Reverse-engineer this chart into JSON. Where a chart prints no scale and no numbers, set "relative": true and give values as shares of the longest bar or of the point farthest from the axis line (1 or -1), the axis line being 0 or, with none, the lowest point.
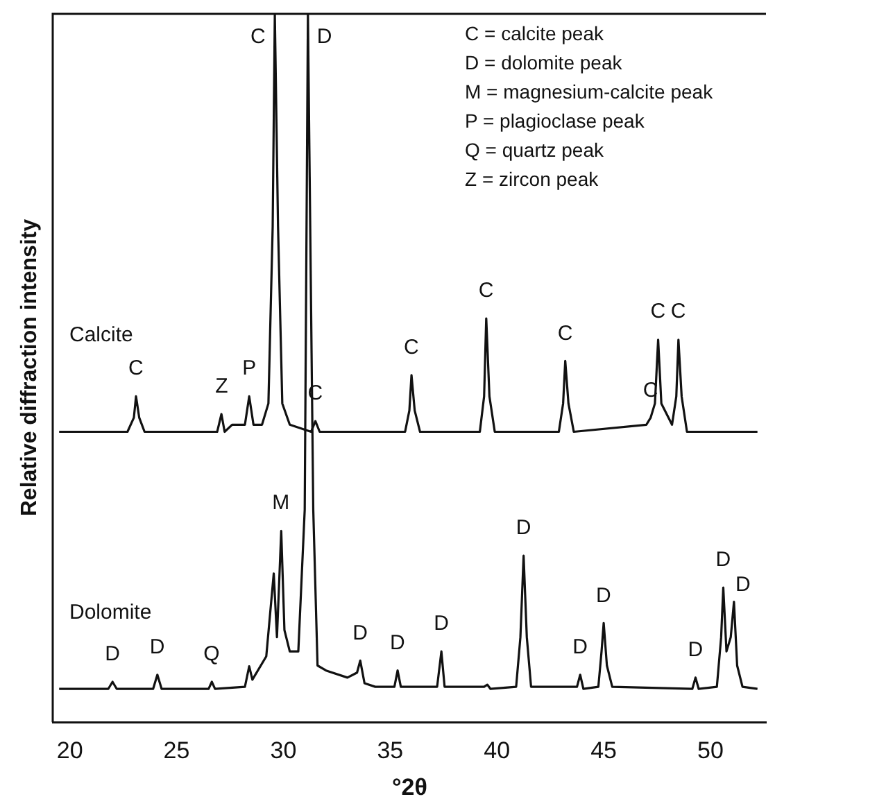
{
  "chart_data": {
    "type": "line",
    "relative": true,
    "xlabel": "°2θ",
    "ylabel": "Relative diffraction intensity",
    "xlim": [
      19.2,
      52.6
    ],
    "xticks": [
      20,
      25,
      30,
      35,
      40,
      45,
      50
    ],
    "tick_labels": "x",
    "grid": false,
    "marker": "none",
    "line_style": "solid",
    "series": [
      {
        "name": "Calcite",
        "color": "#111111",
        "x": [
          19.5,
          22.7,
          23.0,
          23.1,
          23.25,
          23.5,
          26.9,
          27.1,
          27.25,
          27.6,
          28.2,
          28.4,
          28.6,
          29.0,
          29.3,
          29.5,
          29.6,
          29.75,
          29.95,
          30.3,
          31.3,
          31.5,
          31.7,
          35.7,
          35.9,
          36.0,
          36.15,
          36.4,
          39.2,
          39.4,
          39.5,
          39.65,
          39.9,
          42.9,
          43.1,
          43.2,
          43.35,
          43.6,
          47.0,
          47.2,
          47.4,
          47.55,
          47.7,
          48.2,
          48.4,
          48.5,
          48.65,
          48.9,
          52.2
        ],
        "values": [
          0.41,
          0.41,
          0.43,
          0.46,
          0.43,
          0.41,
          0.41,
          0.435,
          0.41,
          0.42,
          0.42,
          0.46,
          0.42,
          0.42,
          0.45,
          0.7,
          1,
          0.7,
          0.45,
          0.42,
          0.41,
          0.425,
          0.41,
          0.41,
          0.44,
          0.49,
          0.44,
          0.41,
          0.41,
          0.46,
          0.57,
          0.46,
          0.41,
          0.41,
          0.45,
          0.51,
          0.45,
          0.41,
          0.42,
          0.43,
          0.45,
          0.54,
          0.45,
          0.42,
          0.46,
          0.54,
          0.46,
          0.41,
          0.41
        ]
      },
      {
        "name": "Dolomite",
        "color": "#111111",
        "x": [
          19.5,
          21.8,
          22.0,
          22.2,
          23.9,
          24.1,
          24.3,
          26.5,
          26.65,
          26.8,
          28.2,
          28.4,
          28.55,
          29.2,
          29.55,
          29.7,
          29.9,
          30.05,
          30.3,
          30.7,
          31.0,
          31.15,
          31.4,
          31.6,
          32,
          33,
          33.45,
          33.6,
          33.8,
          34.3,
          35.2,
          35.35,
          35.5,
          37.2,
          37.4,
          37.55,
          39.4,
          39.55,
          39.7,
          40.9,
          41.1,
          41.25,
          41.4,
          41.6,
          43.75,
          43.9,
          44.05,
          44.75,
          44.9,
          45.0,
          45.15,
          45.4,
          49.15,
          49.3,
          49.45,
          50.3,
          50.5,
          50.6,
          50.75,
          50.95,
          51.1,
          51.25,
          51.5,
          52.2
        ],
        "values": [
          0.047,
          0.047,
          0.057,
          0.047,
          0.047,
          0.067,
          0.047,
          0.047,
          0.057,
          0.047,
          0.05,
          0.079,
          0.06,
          0.093,
          0.21,
          0.12,
          0.27,
          0.13,
          0.1,
          0.1,
          0.3,
          1,
          0.3,
          0.08,
          0.073,
          0.063,
          0.07,
          0.087,
          0.055,
          0.05,
          0.05,
          0.073,
          0.05,
          0.05,
          0.1,
          0.05,
          0.05,
          0.053,
          0.047,
          0.05,
          0.12,
          0.235,
          0.12,
          0.05,
          0.05,
          0.067,
          0.047,
          0.05,
          0.1,
          0.14,
          0.08,
          0.05,
          0.047,
          0.063,
          0.047,
          0.05,
          0.12,
          0.19,
          0.1,
          0.12,
          0.17,
          0.08,
          0.05,
          0.047
        ]
      }
    ],
    "annotations": [
      "C = calcite peak",
      "D = dolomite peak",
      "M = magnesium-calcite peak",
      "P = plagioclase peak",
      "Q = quartz peak",
      "Z = zircon peak",
      {
        "text": "C",
        "x": 29.6,
        "y": 1
      },
      {
        "text": "D",
        "x": 31.15,
        "y": 1
      },
      {
        "text": "C",
        "x": 23.1,
        "y": 0.46
      },
      {
        "text": "Z",
        "x": 27.1,
        "y": 0.435
      },
      {
        "text": "P",
        "x": 28.4,
        "y": 0.46
      },
      {
        "text": "C",
        "x": 31.5,
        "y": 0.425
      },
      {
        "text": "C",
        "x": 36.0,
        "y": 0.49
      },
      {
        "text": "C",
        "x": 39.5,
        "y": 0.57
      },
      {
        "text": "C",
        "x": 43.2,
        "y": 0.51
      },
      {
        "text": "C",
        "x": 47.2,
        "y": 0.43
      },
      {
        "text": "C",
        "x": 47.55,
        "y": 0.54
      },
      {
        "text": "C",
        "x": 48.5,
        "y": 0.54
      },
      {
        "text": "M",
        "x": 29.9,
        "y": 0.27
      },
      {
        "text": "D",
        "x": 22.0,
        "y": 0.057
      },
      {
        "text": "D",
        "x": 24.1,
        "y": 0.067
      },
      {
        "text": "Q",
        "x": 26.65,
        "y": 0.057
      },
      {
        "text": "D",
        "x": 33.6,
        "y": 0.087
      },
      {
        "text": "D",
        "x": 35.35,
        "y": 0.073
      },
      {
        "text": "D",
        "x": 37.4,
        "y": 0.1
      },
      {
        "text": "D",
        "x": 41.25,
        "y": 0.235
      },
      {
        "text": "D",
        "x": 43.9,
        "y": 0.067
      },
      {
        "text": "D",
        "x": 45.0,
        "y": 0.14
      },
      {
        "text": "D",
        "x": 49.3,
        "y": 0.063
      },
      {
        "text": "D",
        "x": 50.6,
        "y": 0.19
      },
      {
        "text": "D",
        "x": 51.1,
        "y": 0.17
      }
    ]
  }
}
